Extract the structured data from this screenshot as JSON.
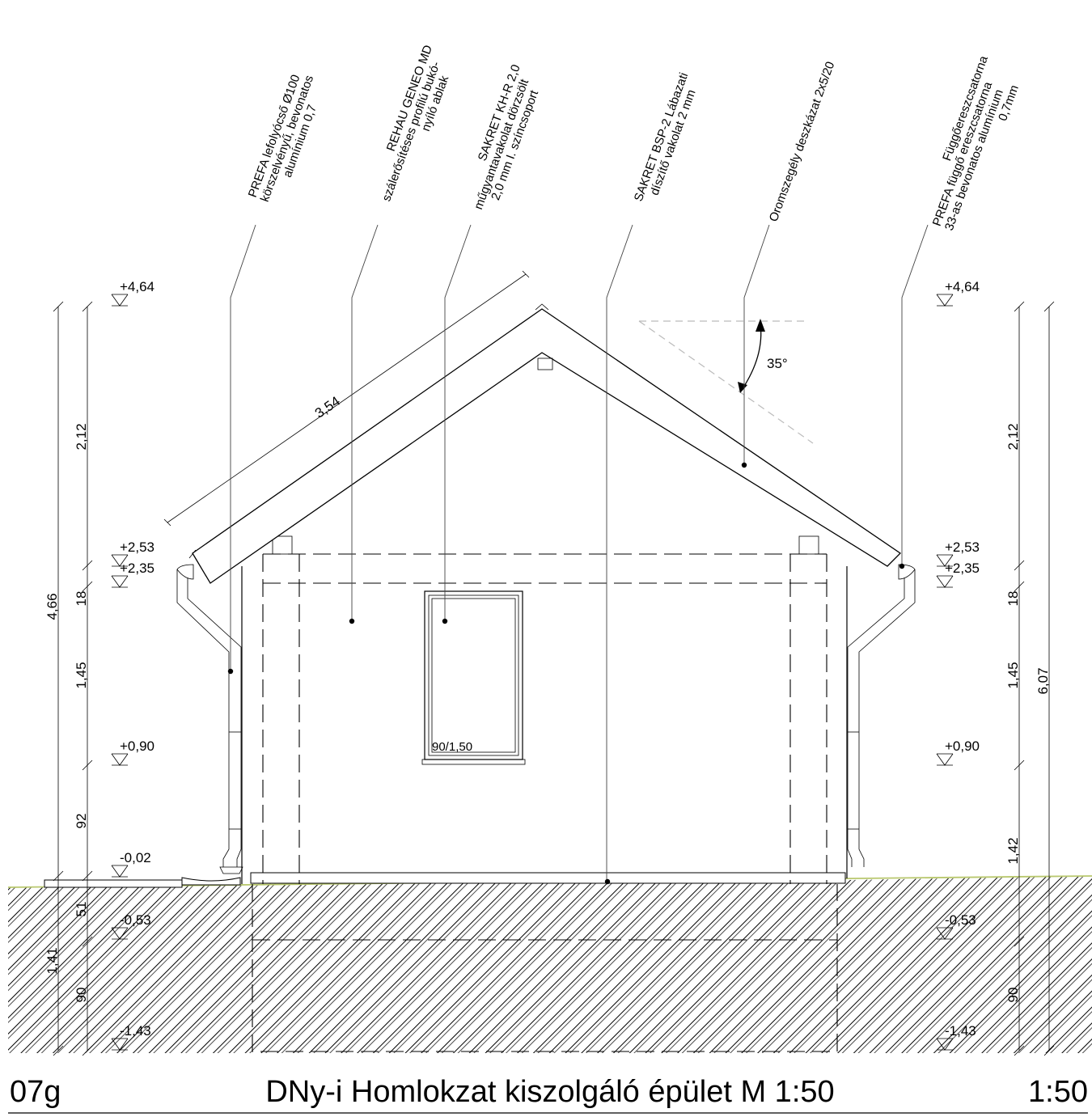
{
  "sheet": {
    "code": "07g",
    "title": "DNy-i Homlokzat kiszolgáló épület M 1:50",
    "scale": "1:50"
  },
  "callouts": [
    {
      "id": "downpipe",
      "lines": [
        "PREFA lefolyócső Ø100",
        "körszelvényű, bevonatos",
        "alumínium 0,7"
      ]
    },
    {
      "id": "window",
      "lines": [
        "REHAU GENEO MD",
        "szálerősítéses profilú bukó-",
        "nyíló ablak"
      ]
    },
    {
      "id": "render",
      "lines": [
        "SAKRET KH-R 2,0",
        "műgyantavakolat dörzsölt",
        "2,0 mm I. színcsoport"
      ]
    },
    {
      "id": "plinth",
      "lines": [
        "SAKRET BSP-2 Lábazati",
        "díszítő vakolat 2 mm"
      ]
    },
    {
      "id": "verge",
      "lines": [
        "Oromszegély deszkázat 2x5/20"
      ]
    },
    {
      "id": "gutter",
      "lines": [
        "Függőereszcsatorna",
        "PREFA függő ereszcsatorna",
        "33-as bevonatos alumínium",
        "0,7mm"
      ]
    }
  ],
  "levels": {
    "left": [
      "+4,64",
      "+2,53",
      "+2,35",
      "+0,90",
      "-0,02",
      "-0,53",
      "-1,43"
    ],
    "right": [
      "+4,64",
      "+2,53",
      "+2,35",
      "+0,90",
      "-0,53",
      "-1,43"
    ]
  },
  "dimensions": {
    "left_total": "4,66",
    "left_chain": [
      "2,12",
      "18",
      "1,45",
      "92",
      "51",
      "90"
    ],
    "left_below": "1,41",
    "right_chain": [
      "2,12",
      "18",
      "1,45",
      "1,42",
      "90"
    ],
    "right_total": "6,07",
    "roof_slope_length": "3,54",
    "roof_angle": "35°"
  },
  "window_tag": "90/1,50"
}
